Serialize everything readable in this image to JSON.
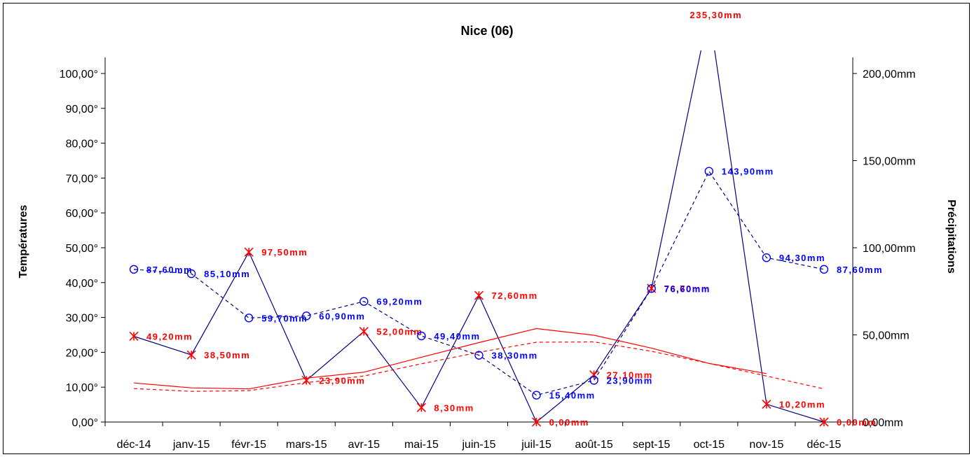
{
  "chart_data": {
    "type": "line",
    "title": "Nice (06)",
    "ylabel_left": "Températures",
    "ylabel_right": "Précipitations",
    "categories": [
      "déc-14",
      "janv-15",
      "févr-15",
      "mars-15",
      "avr-15",
      "mai-15",
      "juin-15",
      "juil-15",
      "août-15",
      "sept-15",
      "oct-15",
      "nov-15",
      "déc-15"
    ],
    "y_left": {
      "min": 0,
      "max": 100,
      "step": 10,
      "ticks": [
        "0,00°",
        "10,00°",
        "20,00°",
        "30,00°",
        "40,00°",
        "50,00°",
        "60,00°",
        "70,00°",
        "80,00°",
        "90,00°",
        "100,00°"
      ]
    },
    "y_right": {
      "min": 0,
      "max": 200,
      "step": 50,
      "ticks": [
        "0,00mm",
        "50,00mm",
        "100,00mm",
        "150,00mm",
        "200,00mm"
      ]
    },
    "series": [
      {
        "axis": "right",
        "color": "#000080",
        "style": "solid",
        "marker": "star",
        "marker_color": "#ff0000",
        "label_color": "#ff0000",
        "values": [
          49.2,
          38.5,
          97.5,
          23.9,
          52.0,
          8.3,
          72.6,
          0.0,
          27.1,
          76.7,
          235.3,
          10.2,
          0.0
        ],
        "labels": [
          "49,20mm",
          "38,50mm",
          "97,50mm",
          "23,90mm",
          "52,00mm",
          "8,30mm",
          "72,60mm",
          "0,00mm",
          "27,10mm",
          "76,70mm",
          "235,30mm",
          "10,20mm",
          "0,00mm"
        ]
      },
      {
        "axis": "right",
        "color": "#000080",
        "style": "dashed",
        "marker": "circle",
        "marker_color": "#0000ff",
        "label_color": "#0000ff",
        "values": [
          87.6,
          85.1,
          59.7,
          60.9,
          69.2,
          49.4,
          38.3,
          15.4,
          23.9,
          76.6,
          143.9,
          94.3,
          87.6
        ],
        "labels": [
          "87,60mm",
          "85,10mm",
          "59,70mm",
          "60,90mm",
          "69,20mm",
          "49,40mm",
          "38,30mm",
          "15,40mm",
          "23,90mm",
          "76,60mm",
          "143,90mm",
          "94,30mm",
          "87,60mm"
        ]
      },
      {
        "axis": "left",
        "color": "#ff0000",
        "style": "solid",
        "marker": "none",
        "values": [
          11.2,
          9.8,
          9.5,
          12.6,
          14.3,
          18.6,
          22.8,
          26.8,
          24.9,
          21.2,
          16.8,
          13.9,
          null
        ]
      },
      {
        "axis": "left",
        "color": "#ff0000",
        "style": "dashed",
        "marker": "none",
        "values": [
          9.6,
          8.8,
          9.0,
          11.3,
          13.2,
          16.7,
          20.0,
          22.9,
          23.0,
          20.3,
          16.8,
          13.2,
          9.5
        ]
      }
    ]
  }
}
